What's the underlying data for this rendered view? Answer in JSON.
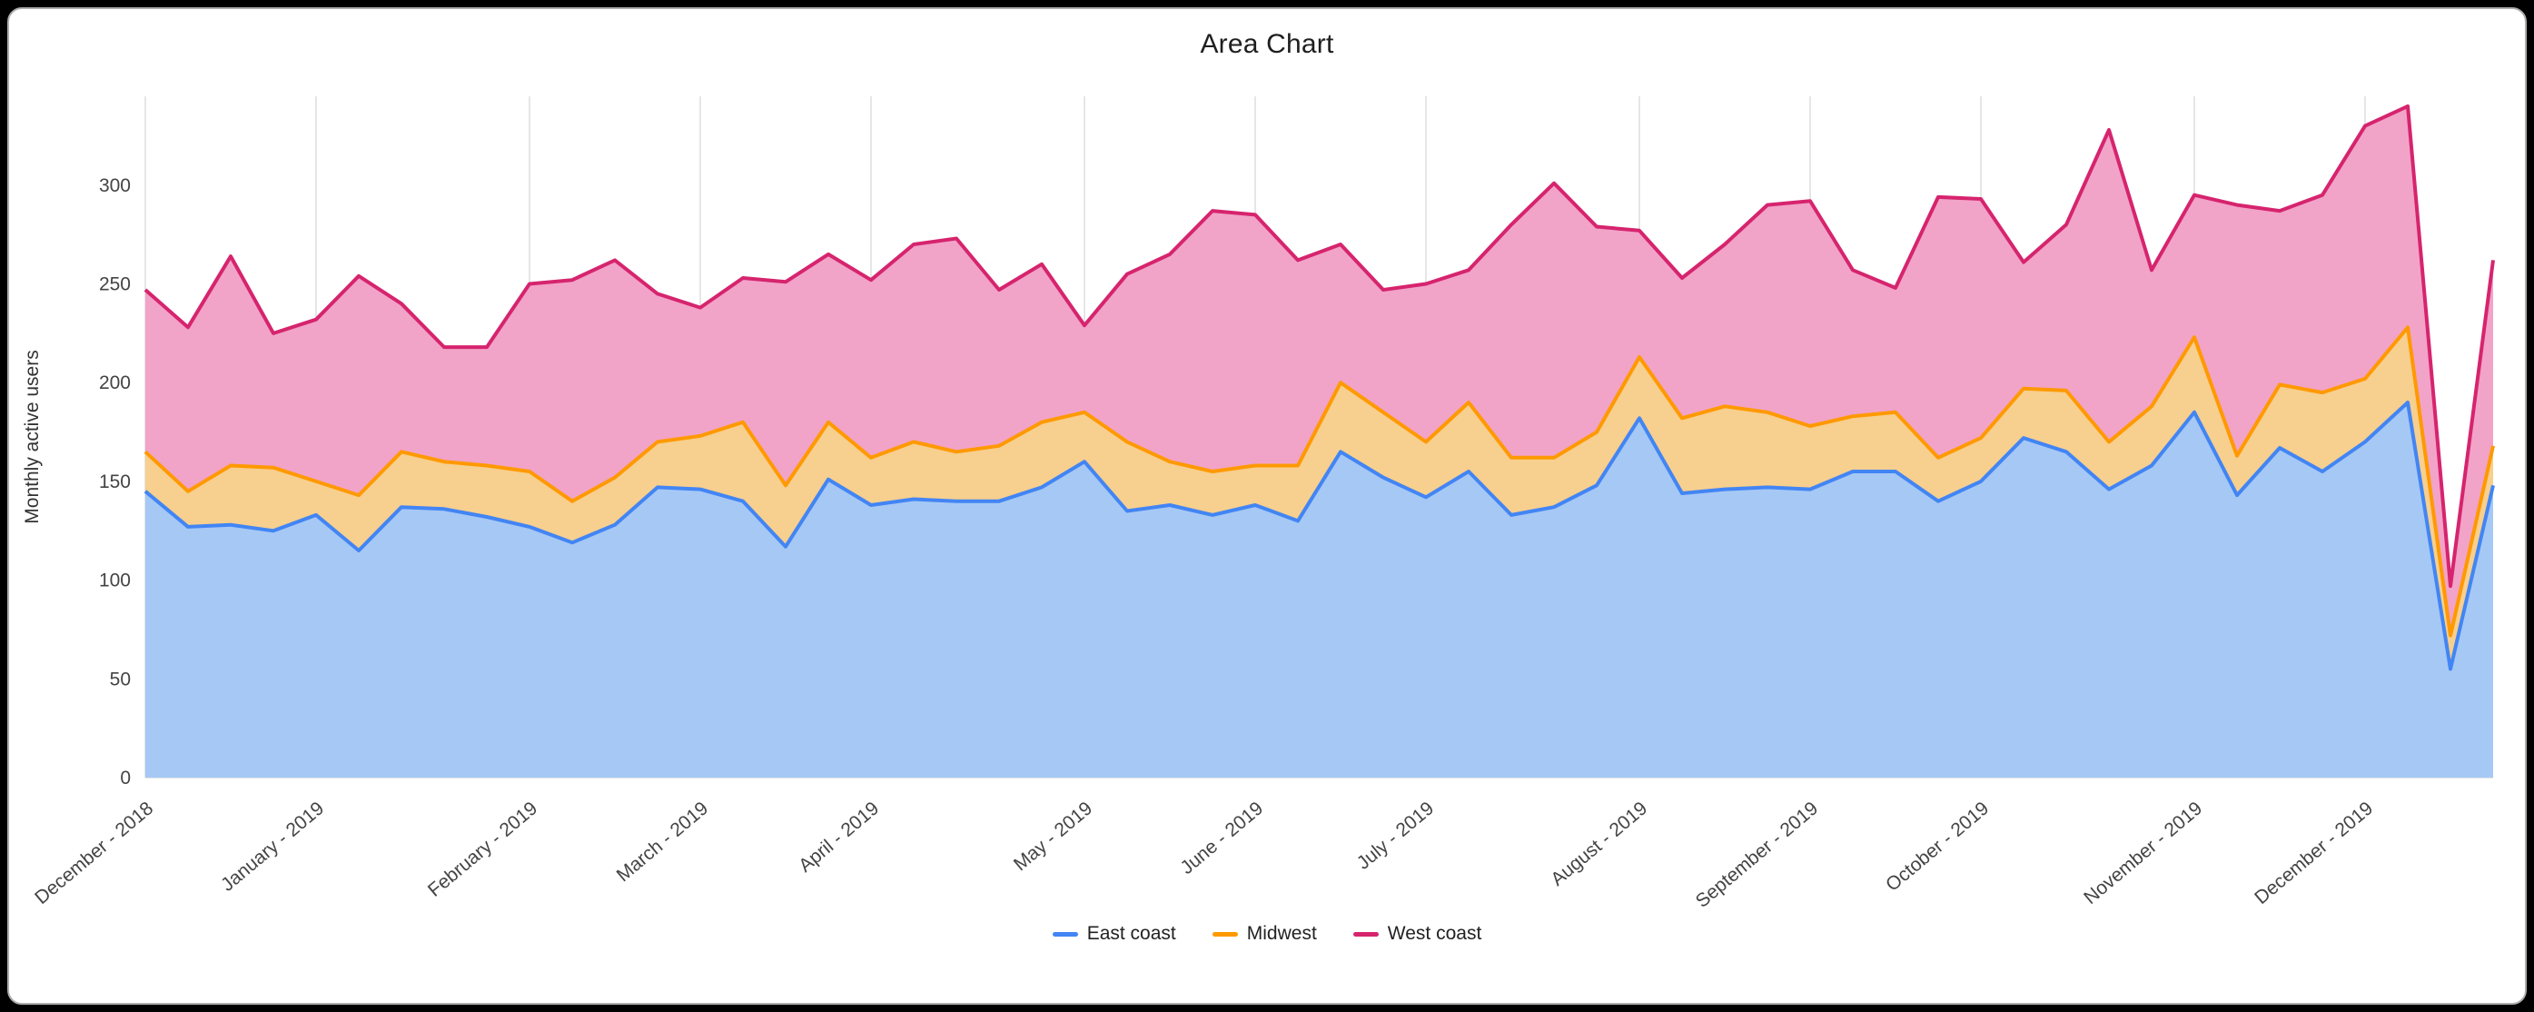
{
  "title": "Area Chart",
  "chart_data": {
    "type": "area",
    "stacked": true,
    "title": "Area Chart",
    "xlabel": "",
    "ylabel": "Monthly active users",
    "ylim": [
      0,
      345
    ],
    "yticks": [
      0,
      50,
      100,
      150,
      200,
      250,
      300
    ],
    "grid": "vertical",
    "legend_position": "bottom",
    "x_unit": "week",
    "tick_labels": [
      "December - 2018",
      "January - 2019",
      "February - 2019",
      "March - 2019",
      "April - 2019",
      "May - 2019",
      "June - 2019",
      "July - 2019",
      "August - 2019",
      "September - 2019",
      "October - 2019",
      "November - 2019",
      "December - 2019"
    ],
    "tick_indices": [
      0,
      4,
      9,
      13,
      17,
      22,
      26,
      30,
      35,
      39,
      43,
      48,
      52
    ],
    "grid_color": "#e6e6e6",
    "axis_text_color": "#444444",
    "series": [
      {
        "name": "East coast",
        "line_color": "#4285f4",
        "fill_color": "#a6c8f5",
        "values": [
          145,
          127,
          128,
          125,
          133,
          115,
          137,
          136,
          132,
          127,
          119,
          128,
          147,
          146,
          140,
          117,
          151,
          138,
          141,
          140,
          140,
          147,
          160,
          135,
          138,
          133,
          138,
          130,
          165,
          152,
          142,
          155,
          133,
          137,
          148,
          182,
          144,
          146,
          147,
          146,
          155,
          155,
          140,
          150,
          172,
          165,
          146,
          158,
          185,
          143,
          167,
          155,
          170,
          190,
          55,
          148
        ]
      },
      {
        "name": "Midwest",
        "line_color": "#ff9900",
        "fill_color": "#f7cf8e",
        "values": [
          20,
          18,
          30,
          32,
          17,
          28,
          28,
          24,
          26,
          28,
          21,
          24,
          23,
          27,
          40,
          31,
          29,
          24,
          29,
          25,
          28,
          33,
          25,
          35,
          22,
          22,
          20,
          28,
          35,
          33,
          28,
          35,
          29,
          25,
          27,
          31,
          38,
          42,
          38,
          32,
          28,
          30,
          22,
          22,
          25,
          31,
          24,
          30,
          38,
          20,
          32,
          40,
          32,
          38,
          17,
          20
        ]
      },
      {
        "name": "West coast",
        "line_color": "#d6246e",
        "fill_color": "#f2a3c8",
        "values": [
          82,
          83,
          106,
          68,
          82,
          111,
          75,
          58,
          60,
          95,
          112,
          110,
          75,
          65,
          73,
          103,
          85,
          90,
          100,
          108,
          79,
          80,
          44,
          85,
          105,
          132,
          127,
          104,
          70,
          62,
          80,
          67,
          118,
          139,
          104,
          64,
          71,
          82,
          105,
          114,
          74,
          63,
          132,
          121,
          64,
          84,
          158,
          69,
          72,
          127,
          88,
          100,
          128,
          112,
          25,
          94
        ]
      }
    ]
  }
}
